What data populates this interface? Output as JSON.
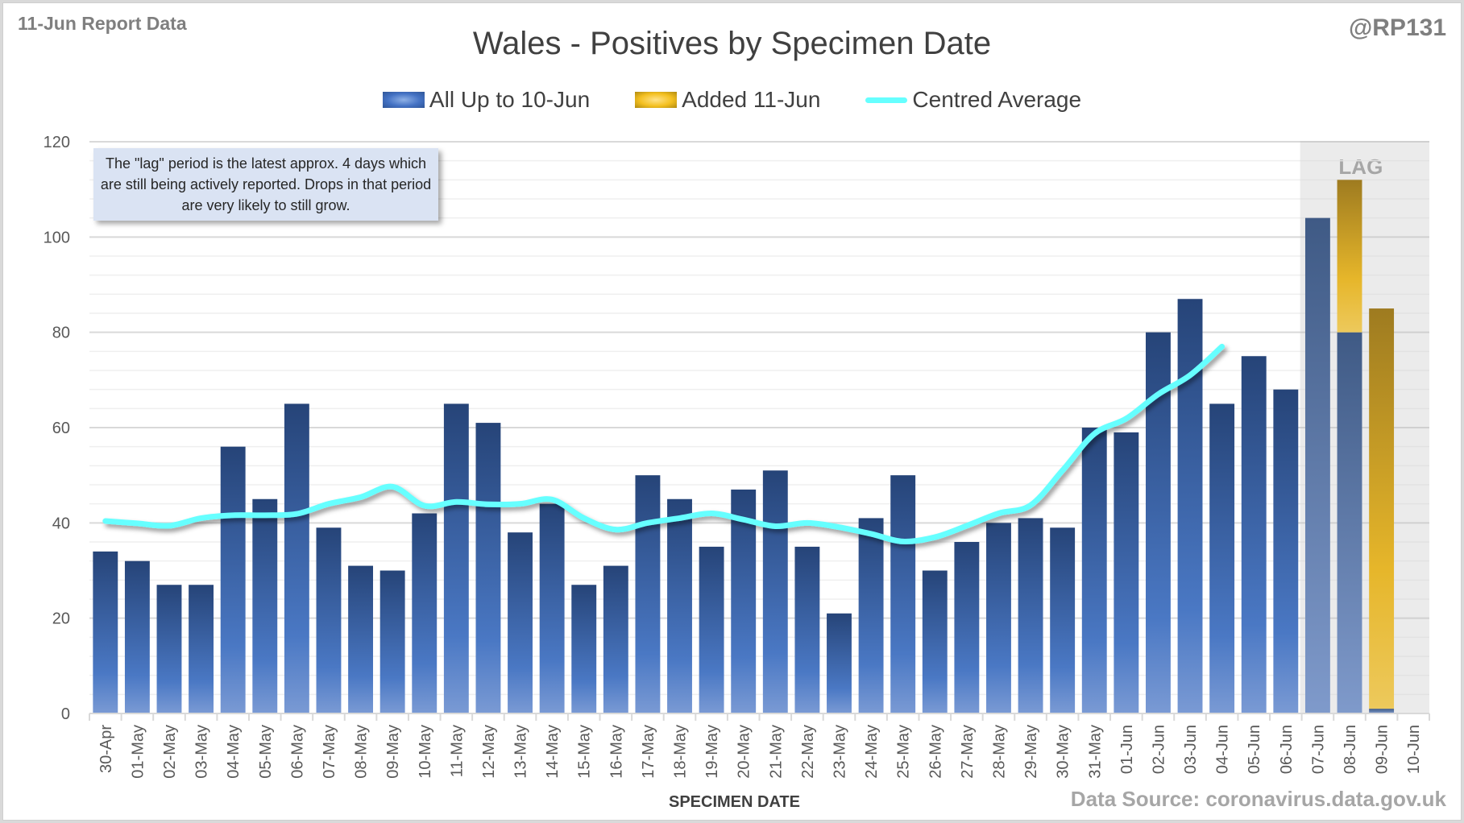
{
  "header": {
    "report_label": "11-Jun Report Data",
    "handle": "@RP131",
    "title": "Wales - Positives by Specimen Date"
  },
  "legend": [
    {
      "label": "All Up to 10-Jun",
      "icon": "blue-bar-swatch"
    },
    {
      "label": "Added 11-Jun",
      "icon": "gold-bar-swatch"
    },
    {
      "label": "Centred Average",
      "icon": "cyan-line-swatch"
    }
  ],
  "note": "The \"lag\" period is the latest approx. 4 days which are still being actively reported.  Drops in that period are very likely to still grow.",
  "lag_label": "LAG",
  "footer": {
    "source": "Data Source: coronavirus.data.gov.uk"
  },
  "colors": {
    "all_up_to": "#4472c4",
    "added": "#f4c020",
    "average": "#66ffff",
    "lag_shade": "#ebebeb"
  },
  "chart_data": {
    "type": "bar",
    "stacked": true,
    "title": "Wales - Positives by Specimen Date",
    "xlabel": "SPECIMEN DATE",
    "ylabel": "",
    "ylim": [
      0,
      120
    ],
    "yticks": [
      0,
      20,
      40,
      60,
      80,
      100,
      120
    ],
    "grid": true,
    "legend_position": "top",
    "categories": [
      "30-Apr",
      "01-May",
      "02-May",
      "03-May",
      "04-May",
      "05-May",
      "06-May",
      "07-May",
      "08-May",
      "09-May",
      "10-May",
      "11-May",
      "12-May",
      "13-May",
      "14-May",
      "15-May",
      "16-May",
      "17-May",
      "18-May",
      "19-May",
      "20-May",
      "21-May",
      "22-May",
      "23-May",
      "24-May",
      "25-May",
      "26-May",
      "27-May",
      "28-May",
      "29-May",
      "30-May",
      "31-May",
      "01-Jun",
      "02-Jun",
      "03-Jun",
      "04-Jun",
      "05-Jun",
      "06-Jun",
      "07-Jun",
      "08-Jun",
      "09-Jun",
      "10-Jun"
    ],
    "lag_categories": [
      "07-Jun",
      "08-Jun",
      "09-Jun",
      "10-Jun"
    ],
    "series": [
      {
        "name": "All Up to 10-Jun",
        "type": "bar",
        "values": [
          34,
          32,
          27,
          27,
          56,
          45,
          65,
          39,
          31,
          30,
          42,
          65,
          61,
          38,
          44,
          27,
          31,
          50,
          45,
          35,
          47,
          51,
          35,
          21,
          41,
          50,
          30,
          36,
          40,
          41,
          39,
          60,
          59,
          80,
          87,
          65,
          75,
          68,
          104,
          80,
          1,
          0
        ]
      },
      {
        "name": "Added 11-Jun",
        "type": "bar",
        "values": [
          0,
          0,
          0,
          0,
          0,
          0,
          0,
          0,
          0,
          0,
          0,
          0,
          0,
          0,
          0,
          0,
          0,
          0,
          0,
          0,
          0,
          0,
          0,
          0,
          0,
          0,
          0,
          0,
          0,
          0,
          0,
          0,
          0,
          0,
          0,
          0,
          0,
          0,
          0,
          32,
          84,
          0
        ]
      },
      {
        "name": "Centred Average",
        "type": "line",
        "values": [
          40.4,
          39.9,
          39.4,
          41.0,
          41.6,
          41.6,
          41.9,
          44.0,
          45.4,
          47.6,
          43.6,
          44.4,
          43.9,
          44.0,
          44.9,
          41.0,
          38.6,
          40.0,
          41.0,
          42.0,
          40.7,
          39.3,
          40.0,
          39.1,
          37.7,
          36.1,
          37.0,
          39.4,
          42.0,
          43.7,
          51.0,
          58.7,
          61.9,
          67.0,
          71.0,
          77.0,
          null,
          null,
          null,
          null,
          null,
          null
        ]
      }
    ]
  }
}
